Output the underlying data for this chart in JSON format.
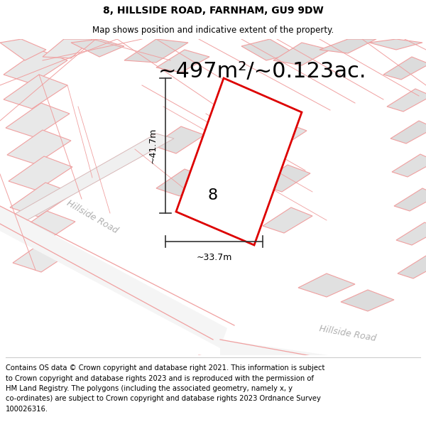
{
  "title": "8, HILLSIDE ROAD, FARNHAM, GU9 9DW",
  "subtitle": "Map shows position and indicative extent of the property.",
  "area_text": "~497m²/~0.123ac.",
  "dim_vertical": "~41.7m",
  "dim_horizontal": "~33.7m",
  "property_number": "8",
  "road_label1": "Hillside Road",
  "road_label2": "Hillside Road",
  "footer_lines": [
    "Contains OS data © Crown copyright and database right 2021. This information is subject",
    "to Crown copyright and database rights 2023 and is reproduced with the permission of",
    "HM Land Registry. The polygons (including the associated geometry, namely x, y",
    "co-ordinates) are subject to Crown copyright and database rights 2023 Ordnance Survey",
    "100026316."
  ],
  "map_bg": "#f7f7f7",
  "parcel_fill": "#e8e8e8",
  "parcel_edge": "#f0a0a0",
  "parcel_edge_dark": "#d08080",
  "plot_color": "#dd0000",
  "road_line_color": "#f0a0a0",
  "road_text_color": "#aaaaaa",
  "dim_line_color": "#333333",
  "title_fontsize": 10,
  "subtitle_fontsize": 8.5,
  "area_fontsize": 22,
  "footer_fontsize": 7.2,
  "number_fontsize": 16
}
